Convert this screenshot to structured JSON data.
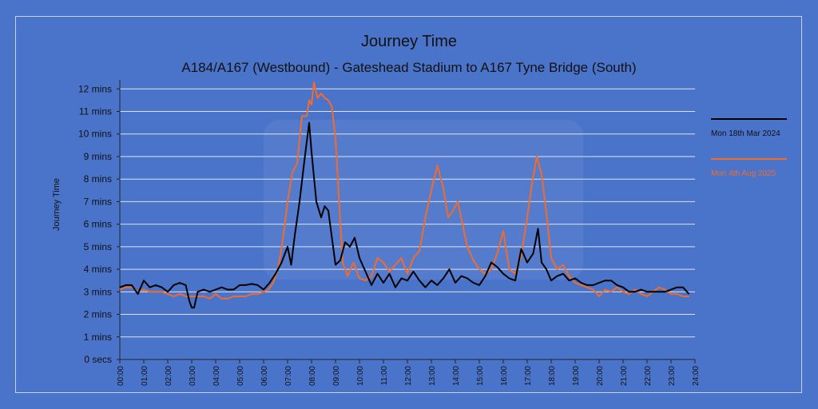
{
  "chart_data": {
    "type": "line",
    "title": "Journey Time",
    "subtitle": "A184/A167 (Westbound) - Gateshead Stadium to A167 Tyne Bridge (South)",
    "xlabel": "",
    "ylabel": "Journey Time",
    "x_ticks": [
      "00:00",
      "01:00",
      "02:00",
      "03:00",
      "04:00",
      "05:00",
      "06:00",
      "07:00",
      "08:00",
      "09:00",
      "10:00",
      "11:00",
      "12:00",
      "13:00",
      "14:00",
      "15:00",
      "16:00",
      "17:00",
      "18:00",
      "19:00",
      "20:00",
      "21:00",
      "22:00",
      "23:00",
      "24:00"
    ],
    "y_ticks": [
      "0 secs",
      "1 mins",
      "2 mins",
      "3 mins",
      "4 mins",
      "5 mins",
      "6 mins",
      "7 mins",
      "8 mins",
      "9 mins",
      "10 mins",
      "11 mins",
      "12 mins"
    ],
    "xlim_hours": [
      0,
      24
    ],
    "ylim_minutes": [
      0,
      12.4
    ],
    "grid": true,
    "legend_position": "right",
    "series": [
      {
        "name": "Mon 18th Mar 2024",
        "color": "#000000",
        "points": [
          [
            0,
            3.2
          ],
          [
            0.25,
            3.3
          ],
          [
            0.5,
            3.3
          ],
          [
            0.75,
            2.9
          ],
          [
            1,
            3.5
          ],
          [
            1.25,
            3.2
          ],
          [
            1.5,
            3.3
          ],
          [
            1.75,
            3.2
          ],
          [
            2,
            3.0
          ],
          [
            2.25,
            3.3
          ],
          [
            2.5,
            3.4
          ],
          [
            2.75,
            3.3
          ],
          [
            2.9,
            2.6
          ],
          [
            3.0,
            2.3
          ],
          [
            3.1,
            2.3
          ],
          [
            3.25,
            3.0
          ],
          [
            3.5,
            3.1
          ],
          [
            3.75,
            3.0
          ],
          [
            4,
            3.1
          ],
          [
            4.25,
            3.2
          ],
          [
            4.5,
            3.1
          ],
          [
            4.75,
            3.1
          ],
          [
            5,
            3.3
          ],
          [
            5.25,
            3.3
          ],
          [
            5.5,
            3.35
          ],
          [
            5.75,
            3.3
          ],
          [
            6,
            3.1
          ],
          [
            6.25,
            3.4
          ],
          [
            6.5,
            3.8
          ],
          [
            6.75,
            4.3
          ],
          [
            7,
            5.0
          ],
          [
            7.15,
            4.2
          ],
          [
            7.3,
            5.5
          ],
          [
            7.5,
            7.0
          ],
          [
            7.7,
            8.8
          ],
          [
            7.9,
            10.5
          ],
          [
            8.0,
            9.2
          ],
          [
            8.2,
            7.0
          ],
          [
            8.4,
            6.3
          ],
          [
            8.55,
            6.8
          ],
          [
            8.7,
            6.6
          ],
          [
            8.9,
            5.0
          ],
          [
            9.0,
            4.2
          ],
          [
            9.2,
            4.4
          ],
          [
            9.4,
            5.2
          ],
          [
            9.6,
            5.0
          ],
          [
            9.8,
            5.4
          ],
          [
            10.0,
            4.5
          ],
          [
            10.25,
            3.9
          ],
          [
            10.5,
            3.3
          ],
          [
            10.75,
            3.8
          ],
          [
            11,
            3.4
          ],
          [
            11.25,
            3.8
          ],
          [
            11.5,
            3.2
          ],
          [
            11.75,
            3.6
          ],
          [
            12,
            3.5
          ],
          [
            12.25,
            3.9
          ],
          [
            12.5,
            3.5
          ],
          [
            12.75,
            3.2
          ],
          [
            13,
            3.5
          ],
          [
            13.25,
            3.3
          ],
          [
            13.5,
            3.6
          ],
          [
            13.75,
            4.0
          ],
          [
            14,
            3.4
          ],
          [
            14.25,
            3.7
          ],
          [
            14.5,
            3.6
          ],
          [
            14.75,
            3.4
          ],
          [
            15,
            3.3
          ],
          [
            15.25,
            3.7
          ],
          [
            15.5,
            4.3
          ],
          [
            15.75,
            4.1
          ],
          [
            16,
            3.8
          ],
          [
            16.25,
            3.6
          ],
          [
            16.5,
            3.5
          ],
          [
            16.75,
            4.9
          ],
          [
            17,
            4.3
          ],
          [
            17.25,
            4.7
          ],
          [
            17.45,
            5.8
          ],
          [
            17.6,
            4.3
          ],
          [
            17.8,
            4.0
          ],
          [
            18,
            3.5
          ],
          [
            18.25,
            3.7
          ],
          [
            18.5,
            3.8
          ],
          [
            18.75,
            3.5
          ],
          [
            19,
            3.6
          ],
          [
            19.25,
            3.4
          ],
          [
            19.5,
            3.3
          ],
          [
            19.75,
            3.3
          ],
          [
            20,
            3.4
          ],
          [
            20.25,
            3.5
          ],
          [
            20.5,
            3.5
          ],
          [
            20.75,
            3.3
          ],
          [
            21,
            3.2
          ],
          [
            21.25,
            3.0
          ],
          [
            21.5,
            3.0
          ],
          [
            21.75,
            3.1
          ],
          [
            22,
            3.0
          ],
          [
            22.25,
            3.0
          ],
          [
            22.5,
            3.0
          ],
          [
            22.75,
            3.0
          ],
          [
            23,
            3.1
          ],
          [
            23.25,
            3.2
          ],
          [
            23.5,
            3.2
          ],
          [
            23.75,
            2.9
          ]
        ]
      },
      {
        "name": "Mon 4th Aug 2025",
        "color": "#f26b2d",
        "points": [
          [
            0,
            3.1
          ],
          [
            0.25,
            3.2
          ],
          [
            0.5,
            3.2
          ],
          [
            0.75,
            3.0
          ],
          [
            1,
            3.1
          ],
          [
            1.25,
            3.0
          ],
          [
            1.5,
            3.0
          ],
          [
            1.75,
            3.0
          ],
          [
            2,
            2.9
          ],
          [
            2.25,
            2.8
          ],
          [
            2.5,
            2.9
          ],
          [
            2.75,
            2.8
          ],
          [
            3,
            2.8
          ],
          [
            3.25,
            2.8
          ],
          [
            3.5,
            2.8
          ],
          [
            3.75,
            2.7
          ],
          [
            4,
            2.9
          ],
          [
            4.25,
            2.7
          ],
          [
            4.5,
            2.7
          ],
          [
            4.75,
            2.8
          ],
          [
            5,
            2.8
          ],
          [
            5.25,
            2.8
          ],
          [
            5.5,
            2.9
          ],
          [
            5.75,
            2.9
          ],
          [
            6,
            3.0
          ],
          [
            6.2,
            3.1
          ],
          [
            6.4,
            3.4
          ],
          [
            6.6,
            4.0
          ],
          [
            6.8,
            5.3
          ],
          [
            7,
            7.0
          ],
          [
            7.2,
            8.3
          ],
          [
            7.4,
            8.7
          ],
          [
            7.6,
            10.8
          ],
          [
            7.8,
            10.8
          ],
          [
            7.9,
            11.5
          ],
          [
            8.0,
            11.3
          ],
          [
            8.1,
            12.3
          ],
          [
            8.25,
            11.6
          ],
          [
            8.4,
            11.8
          ],
          [
            8.55,
            11.6
          ],
          [
            8.7,
            11.5
          ],
          [
            8.85,
            11.2
          ],
          [
            9.0,
            9.8
          ],
          [
            9.15,
            7.0
          ],
          [
            9.3,
            4.3
          ],
          [
            9.5,
            3.7
          ],
          [
            9.75,
            4.3
          ],
          [
            10,
            3.6
          ],
          [
            10.25,
            3.5
          ],
          [
            10.5,
            3.7
          ],
          [
            10.75,
            4.5
          ],
          [
            11,
            4.3
          ],
          [
            11.25,
            3.9
          ],
          [
            11.5,
            4.2
          ],
          [
            11.75,
            4.5
          ],
          [
            12,
            3.8
          ],
          [
            12.25,
            4.5
          ],
          [
            12.5,
            4.8
          ],
          [
            12.75,
            6.3
          ],
          [
            13,
            7.5
          ],
          [
            13.25,
            8.6
          ],
          [
            13.5,
            7.6
          ],
          [
            13.7,
            6.3
          ],
          [
            13.9,
            6.6
          ],
          [
            14.1,
            7.0
          ],
          [
            14.3,
            6.0
          ],
          [
            14.5,
            5.0
          ],
          [
            14.75,
            4.4
          ],
          [
            15,
            4.0
          ],
          [
            15.25,
            3.8
          ],
          [
            15.5,
            4.0
          ],
          [
            15.75,
            4.7
          ],
          [
            16,
            5.7
          ],
          [
            16.25,
            4.0
          ],
          [
            16.5,
            3.8
          ],
          [
            16.75,
            4.6
          ],
          [
            17,
            6.3
          ],
          [
            17.2,
            7.8
          ],
          [
            17.4,
            9.0
          ],
          [
            17.6,
            8.2
          ],
          [
            17.8,
            6.5
          ],
          [
            18,
            4.5
          ],
          [
            18.25,
            4.0
          ],
          [
            18.5,
            4.2
          ],
          [
            18.75,
            3.7
          ],
          [
            19,
            3.4
          ],
          [
            19.25,
            3.3
          ],
          [
            19.5,
            3.2
          ],
          [
            19.75,
            3.1
          ],
          [
            20,
            2.8
          ],
          [
            20.25,
            3.1
          ],
          [
            20.5,
            3.0
          ],
          [
            20.75,
            3.2
          ],
          [
            21,
            3.0
          ],
          [
            21.25,
            2.9
          ],
          [
            21.5,
            3.1
          ],
          [
            21.75,
            2.9
          ],
          [
            22,
            2.8
          ],
          [
            22.25,
            3.0
          ],
          [
            22.5,
            3.2
          ],
          [
            22.75,
            3.1
          ],
          [
            23,
            2.9
          ],
          [
            23.25,
            2.9
          ],
          [
            23.5,
            2.8
          ],
          [
            23.75,
            2.8
          ]
        ]
      }
    ]
  }
}
